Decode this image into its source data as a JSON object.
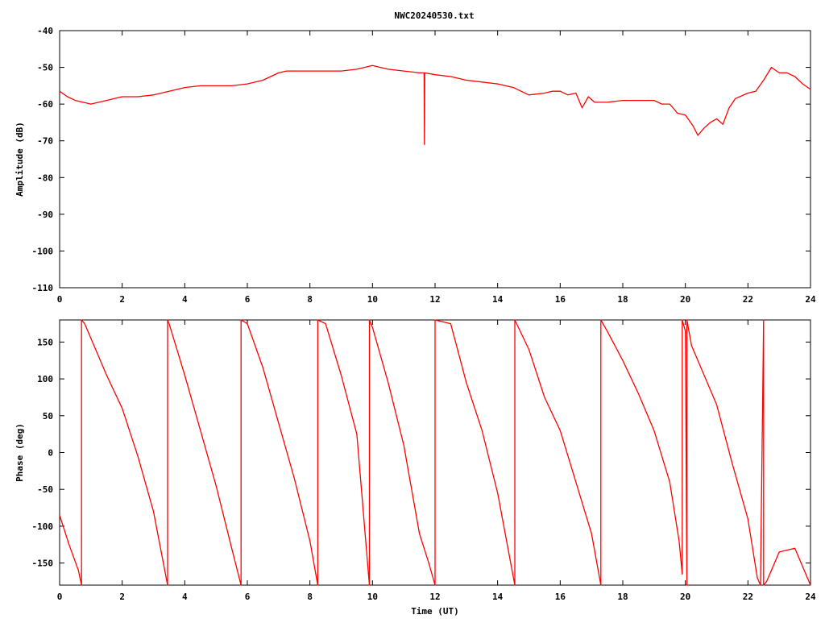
{
  "title": "NWC20240530.txt",
  "colors": {
    "series": "#ff0000",
    "axis": "#000000",
    "background": "#ffffff"
  },
  "chart_data": [
    {
      "type": "line",
      "xlabel": "",
      "ylabel": "Amplitude (dB)",
      "xlim": [
        0,
        24
      ],
      "ylim": [
        -110,
        -40
      ],
      "xticks": [
        "0",
        "2",
        "4",
        "6",
        "8",
        "10",
        "12",
        "14",
        "16",
        "18",
        "20",
        "22",
        "24"
      ],
      "yticks": [
        "-40",
        "-50",
        "-60",
        "-70",
        "-80",
        "-90",
        "-100",
        "-110"
      ],
      "grid": false,
      "series": [
        {
          "x": [
            0,
            0.25,
            0.5,
            0.75,
            1,
            1.25,
            1.5,
            1.75,
            2,
            2.5,
            3,
            3.5,
            4,
            4.5,
            5,
            5.5,
            6,
            6.5,
            7,
            7.25,
            7.5,
            8,
            8.5,
            9,
            9.5,
            10,
            10.25,
            10.5,
            11,
            11.5,
            11.65,
            11.66,
            11.67,
            12,
            12.5,
            13,
            13.5,
            14,
            14.5,
            15,
            15.5,
            15.75,
            16,
            16.25,
            16.5,
            16.7,
            16.9,
            17.1,
            17.3,
            17.5,
            18,
            18.5,
            19,
            19.25,
            19.5,
            19.75,
            20,
            20.25,
            20.4,
            20.6,
            20.8,
            21,
            21.2,
            21.4,
            21.6,
            22,
            22.25,
            22.5,
            22.75,
            23,
            23.25,
            23.5,
            23.75,
            24
          ],
          "y": [
            -56.5,
            -58,
            -59,
            -59.5,
            -60,
            -59.5,
            -59,
            -58.5,
            -58,
            -58,
            -57.5,
            -56.5,
            -55.5,
            -55,
            -55,
            -55,
            -54.5,
            -53.5,
            -51.5,
            -51,
            -51,
            -51,
            -51,
            -51,
            -50.5,
            -49.5,
            -50,
            -50.5,
            -51,
            -51.5,
            -51.5,
            -71,
            -51.5,
            -52,
            -52.5,
            -53.5,
            -54,
            -54.5,
            -55.5,
            -57.5,
            -57,
            -56.5,
            -56.5,
            -57.5,
            -57,
            -61,
            -58,
            -59.5,
            -59.5,
            -59.5,
            -59,
            -59,
            -59,
            -60,
            -60,
            -62.5,
            -63,
            -66,
            -68.5,
            -66.5,
            -65,
            -64,
            -65.5,
            -61,
            -58.5,
            -57,
            -56.5,
            -53.5,
            -50,
            -51.5,
            -51.5,
            -52.5,
            -54.5,
            -56
          ]
        }
      ]
    },
    {
      "type": "line",
      "xlabel": "Time (UT)",
      "ylabel": "Phase (deg)",
      "xlim": [
        0,
        24
      ],
      "ylim": [
        -180,
        180
      ],
      "xticks": [
        "0",
        "2",
        "4",
        "6",
        "8",
        "10",
        "12",
        "14",
        "16",
        "18",
        "20",
        "22",
        "24"
      ],
      "yticks": [
        "150",
        "100",
        "50",
        "0",
        "-50",
        "-100",
        "-150"
      ],
      "grid": false,
      "series": [
        {
          "x": [
            0,
            0.3,
            0.6,
            0.7,
            0.7,
            0.8,
            1.5,
            2,
            2.5,
            3,
            3.45,
            3.45,
            3.5,
            4,
            4.5,
            5,
            5.5,
            5.8,
            5.8,
            6,
            6.5,
            7,
            7.5,
            8,
            8.25,
            8.25,
            8.5,
            9,
            9.5,
            9.9,
            9.9,
            10,
            10.5,
            11,
            11.5,
            11.8,
            12,
            12,
            12.5,
            13,
            13.5,
            14,
            14.55,
            14.55,
            15,
            15.5,
            16,
            16.5,
            17,
            17.3,
            17.3,
            17.5,
            18,
            18.5,
            19,
            19.5,
            19.8,
            19.9,
            19.9,
            20,
            20.05,
            20.05,
            20.2,
            20.5,
            21,
            21.5,
            22,
            22.3,
            22.4,
            22.5,
            22.5,
            22.6,
            23,
            23.5,
            24
          ],
          "y": [
            -85,
            -125,
            -160,
            -180,
            180,
            175,
            105,
            60,
            -5,
            -80,
            -180,
            180,
            175,
            105,
            30,
            -45,
            -130,
            -180,
            180,
            175,
            115,
            40,
            -35,
            -120,
            -180,
            180,
            175,
            105,
            25,
            -180,
            180,
            170,
            95,
            10,
            -110,
            -150,
            -180,
            180,
            175,
            95,
            30,
            -55,
            -180,
            180,
            140,
            75,
            30,
            -40,
            -110,
            -180,
            180,
            165,
            125,
            80,
            30,
            -40,
            -120,
            -165,
            180,
            165,
            -180,
            180,
            145,
            115,
            65,
            -15,
            -90,
            -170,
            -180,
            180,
            -180,
            -175,
            -135,
            -130,
            -180
          ]
        }
      ]
    }
  ]
}
